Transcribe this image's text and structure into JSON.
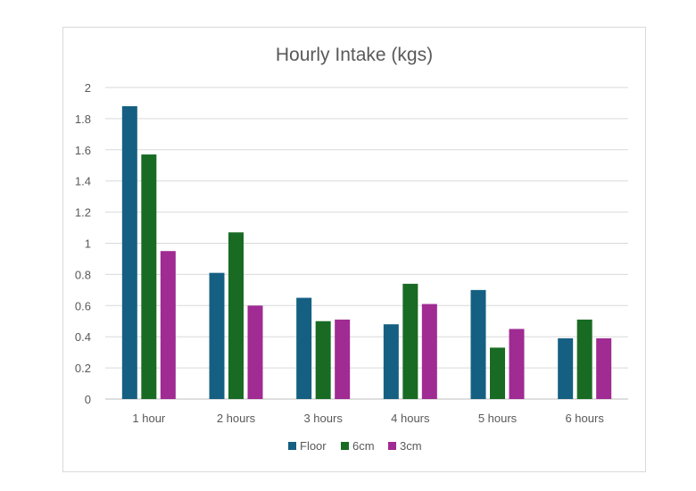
{
  "chart_data": {
    "type": "bar",
    "title": "Hourly Intake (kgs)",
    "xlabel": "",
    "ylabel": "",
    "categories": [
      "1 hour",
      "2 hours",
      "3 hours",
      "4 hours",
      "5 hours",
      "6 hours"
    ],
    "series": [
      {
        "name": "Floor",
        "color": "#156082",
        "values": [
          1.88,
          0.81,
          0.65,
          0.48,
          0.7,
          0.39
        ]
      },
      {
        "name": "6cm",
        "color": "#196B24",
        "values": [
          1.57,
          1.07,
          0.5,
          0.74,
          0.33,
          0.51
        ]
      },
      {
        "name": "3cm",
        "color": "#A02B93",
        "values": [
          0.95,
          0.6,
          0.51,
          0.61,
          0.45,
          0.39
        ]
      }
    ],
    "ylim": [
      0,
      2
    ],
    "yticks": [
      "0",
      "0.2",
      "0.4",
      "0.6",
      "0.8",
      "1",
      "1.2",
      "1.4",
      "1.6",
      "1.8",
      "2"
    ],
    "grid": true,
    "legend": "bottom"
  }
}
